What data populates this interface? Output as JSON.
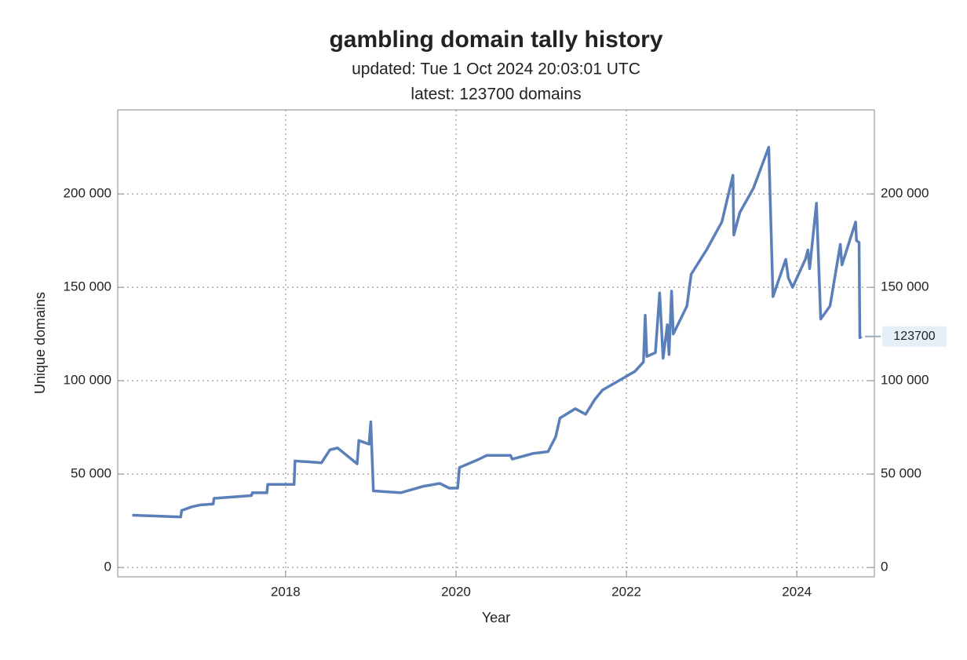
{
  "chart_data": {
    "type": "line",
    "title": "gambling domain tally history",
    "subtitle": "updated: Tue 1 Oct 2024 20:03:01 UTC",
    "subtitle2": "latest: 123700 domains",
    "x_label": "Year",
    "y_label": "Unique domains",
    "x": [
      2016.2,
      2016.5,
      2016.77,
      2016.78,
      2016.9,
      2017.0,
      2017.15,
      2017.16,
      2017.6,
      2017.61,
      2017.78,
      2017.79,
      2018.1,
      2018.11,
      2018.29,
      2018.42,
      2018.52,
      2018.61,
      2018.84,
      2018.86,
      2018.98,
      2019.0,
      2019.03,
      2019.35,
      2019.62,
      2019.81,
      2019.92,
      2020.02,
      2020.04,
      2020.27,
      2020.36,
      2020.64,
      2020.66,
      2020.9,
      2021.08,
      2021.17,
      2021.22,
      2021.4,
      2021.52,
      2021.63,
      2021.72,
      2021.91,
      2022.1,
      2022.2,
      2022.22,
      2022.24,
      2022.34,
      2022.39,
      2022.43,
      2022.48,
      2022.5,
      2022.53,
      2022.55,
      2022.71,
      2022.76,
      2022.94,
      2023.12,
      2023.25,
      2023.26,
      2023.33,
      2023.49,
      2023.67,
      2023.72,
      2023.87,
      2023.9,
      2023.95,
      2024.1,
      2024.13,
      2024.15,
      2024.23,
      2024.28,
      2024.39,
      2024.51,
      2024.53,
      2024.69,
      2024.7,
      2024.73,
      2024.74,
      2024.76
    ],
    "series": [
      {
        "name": "Unique domains",
        "color": "#5b7fb8",
        "values": [
          28000,
          27500,
          27000,
          30500,
          32500,
          33500,
          34000,
          37000,
          38500,
          40000,
          40000,
          44500,
          44500,
          57000,
          56500,
          56000,
          63000,
          64000,
          55500,
          68000,
          66000,
          78000,
          41000,
          40000,
          43500,
          45000,
          42500,
          42500,
          53500,
          58000,
          60000,
          60000,
          58000,
          61000,
          62000,
          70000,
          80000,
          85000,
          82000,
          90000,
          95000,
          100000,
          105000,
          110000,
          135000,
          113000,
          115000,
          147000,
          112000,
          130000,
          114000,
          148000,
          125000,
          140000,
          157000,
          170000,
          185000,
          210000,
          178000,
          190000,
          203000,
          225000,
          145000,
          165000,
          155000,
          150000,
          165000,
          170000,
          160000,
          195000,
          133000,
          140000,
          173000,
          162000,
          185000,
          175000,
          174000,
          123000,
          123700
        ]
      }
    ],
    "end_label": 123700,
    "xlim": [
      2016.03,
      2024.91
    ],
    "ylim": [
      -5000,
      245000
    ],
    "xticks": [
      2018,
      2020,
      2022,
      2024
    ],
    "yticks": [
      0,
      {
        "value": 50000,
        "label": "50 000"
      },
      {
        "value": 100000,
        "label": "100 000"
      },
      {
        "value": 150000,
        "label": "150 000"
      },
      {
        "value": 200000,
        "label": "200 000"
      }
    ],
    "grid": true
  }
}
